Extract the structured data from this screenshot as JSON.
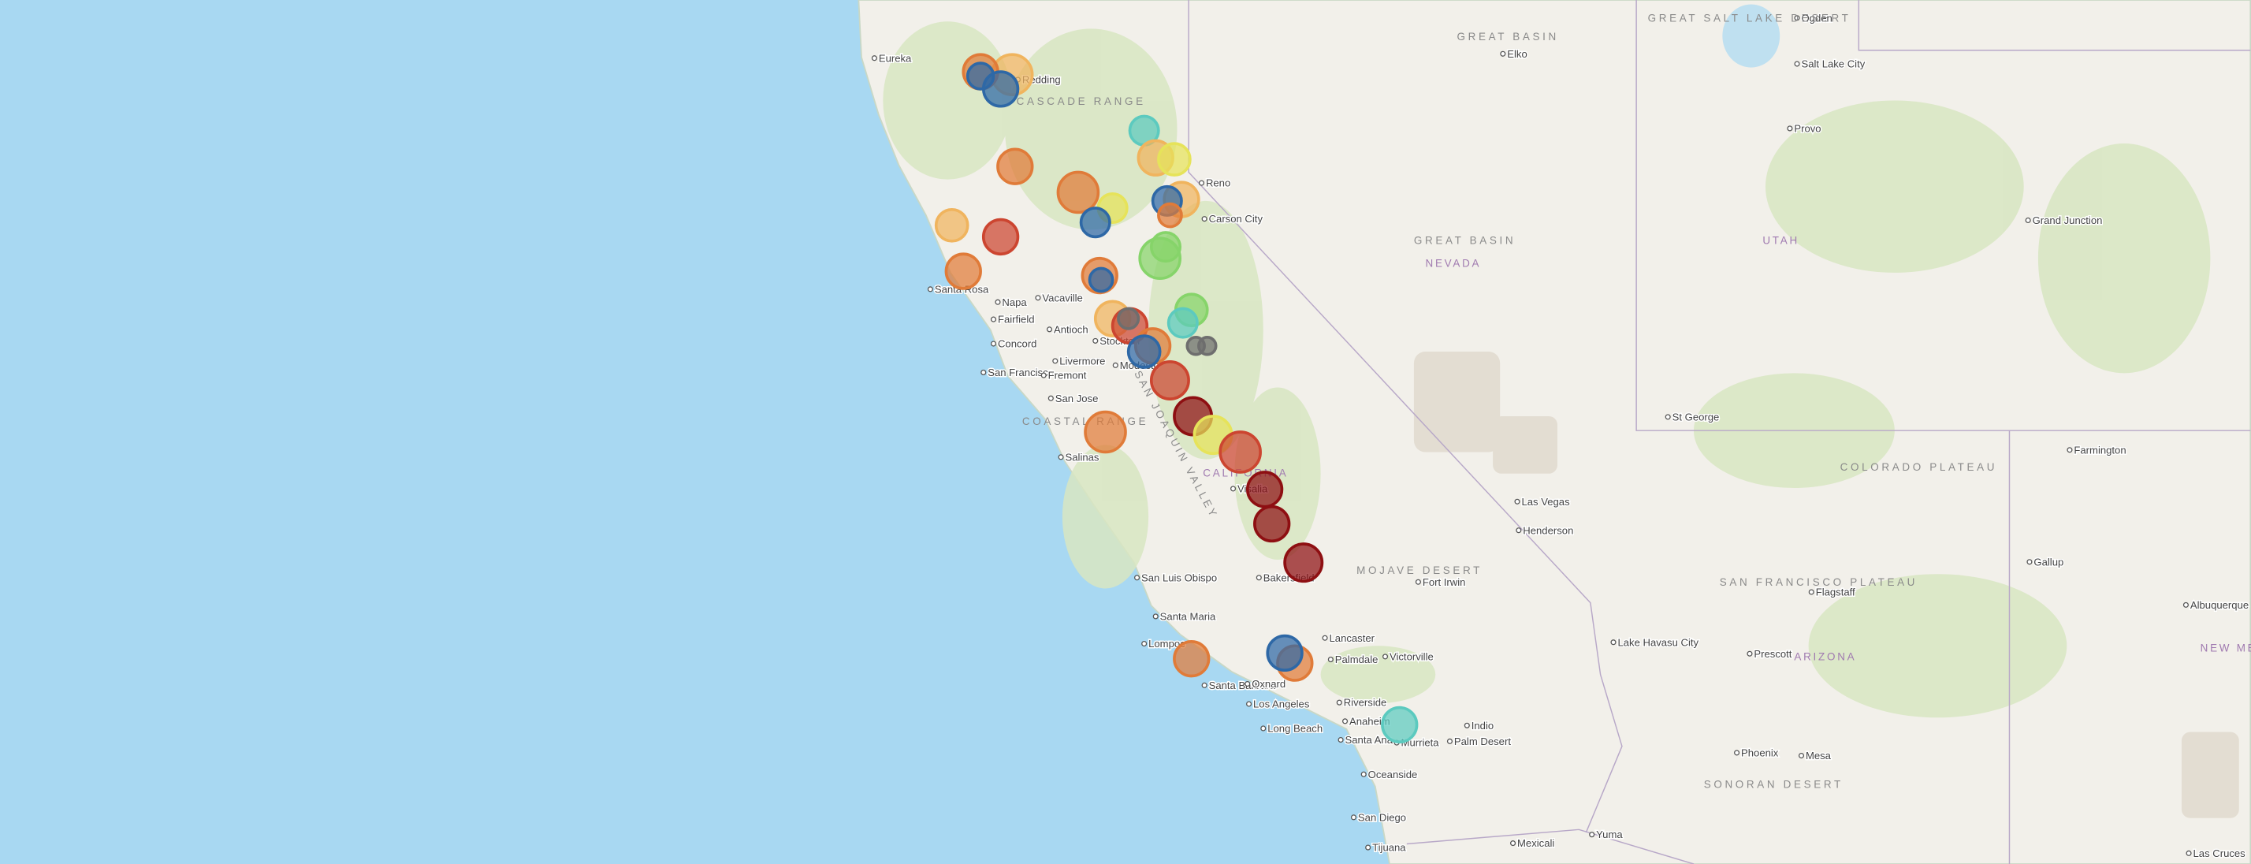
{
  "map": {
    "places": [
      "Eureka",
      "Redding",
      "Reno",
      "Carson City",
      "Santa Rosa",
      "Napa",
      "Vacaville",
      "Fairfield",
      "Concord",
      "Antioch",
      "San Francisco",
      "Livermore",
      "Fremont",
      "San Jose",
      "Stockton",
      "Modesto",
      "Salinas",
      "Visalia",
      "Bakersfield",
      "San Luis Obispo",
      "Santa Maria",
      "Lompoc",
      "Santa Barbara",
      "Oxnard",
      "Lancaster",
      "Palmdale",
      "Victorville",
      "Los Angeles",
      "Long Beach",
      "Riverside",
      "Anaheim",
      "Santa Ana",
      "Murrieta",
      "Oceanside",
      "San Diego",
      "Tijuana",
      "Palm Desert",
      "Indio",
      "Las Vegas",
      "Henderson",
      "Lake Havasu City",
      "St George",
      "Salt Lake City",
      "Provo",
      "Ogden",
      "Elko",
      "Flagstaff",
      "Prescott",
      "Phoenix",
      "Mesa",
      "Yuma",
      "Mexicali",
      "Gallup",
      "Farmington",
      "Grand Junction",
      "Albuquerque",
      "Las Cruces",
      "Fort Irwin"
    ],
    "regions": [
      "GREAT BASIN",
      "GREAT BASIN",
      "MOJAVE DESERT",
      "COLORADO PLATEAU",
      "SONORAN DESERT",
      "SAN FRANCISCO PLATEAU",
      "GREAT SALT LAKE DESERT",
      "COASTAL RANGE",
      "CASCADE RANGE",
      "SAN JOAQUIN VALLEY"
    ],
    "states": [
      "NEVADA",
      "UTAH",
      "ARIZONA",
      "CALIFORNIA",
      "NEW MEXICO"
    ]
  }
}
